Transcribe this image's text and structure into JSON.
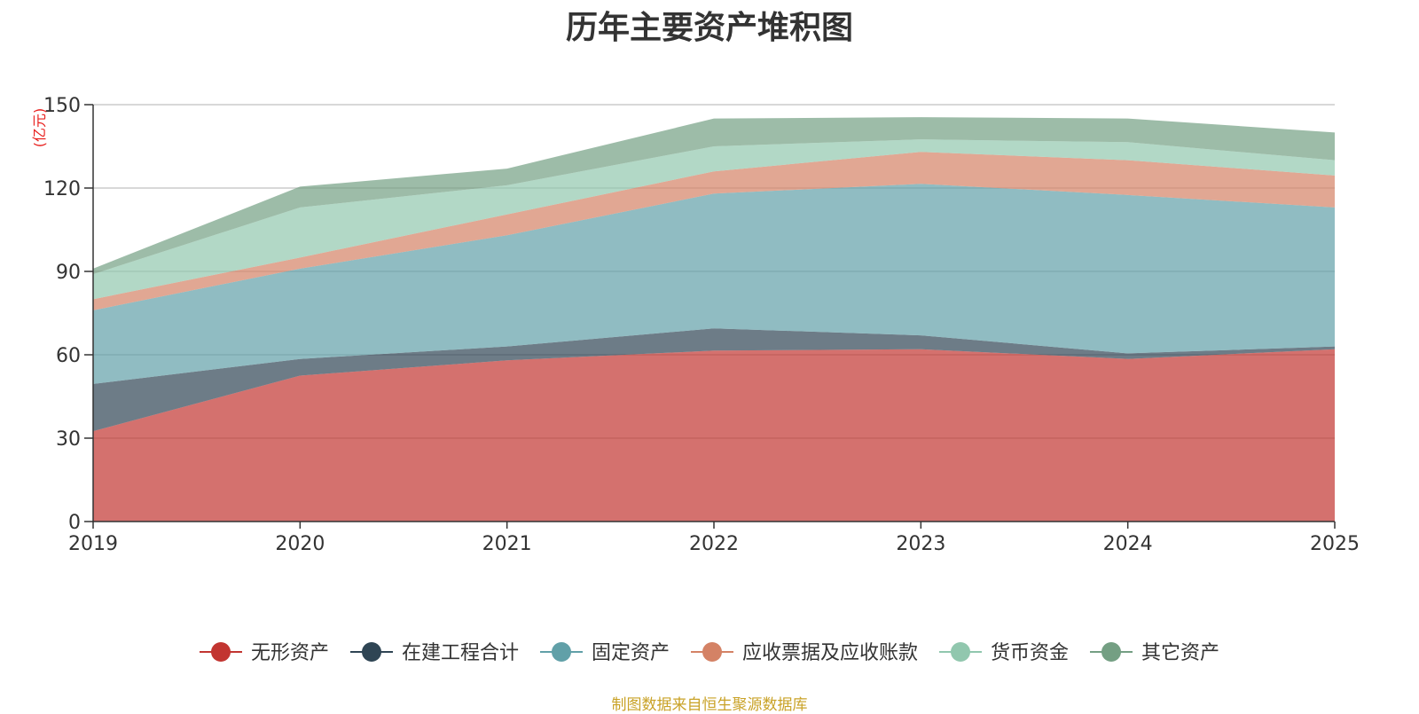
{
  "chart_data": {
    "type": "area",
    "stacked": true,
    "title": "历年主要资产堆积图",
    "ylabel": "(亿元)",
    "xlabel": "",
    "categories": [
      "2019",
      "2020",
      "2021",
      "2022",
      "2023",
      "2024",
      "2025"
    ],
    "ylim": [
      0,
      150
    ],
    "yticks": [
      0,
      30,
      60,
      90,
      120,
      150
    ],
    "grid": true,
    "legend_position": "bottom",
    "series": [
      {
        "name": "无形资产",
        "color": "#c23531",
        "values": [
          32.5,
          52.5,
          58.0,
          61.5,
          62.0,
          58.5,
          62.0
        ]
      },
      {
        "name": "在建工程合计",
        "color": "#2f4554",
        "values": [
          17.0,
          6.0,
          5.0,
          8.0,
          5.0,
          2.0,
          1.0
        ]
      },
      {
        "name": "固定资产",
        "color": "#61a0a8",
        "values": [
          26.5,
          32.5,
          40.0,
          48.5,
          54.5,
          57.0,
          50.0
        ]
      },
      {
        "name": "应收票据及应收账款",
        "color": "#d48265",
        "values": [
          4.0,
          4.0,
          7.5,
          8.0,
          11.5,
          12.5,
          11.5
        ]
      },
      {
        "name": "货币资金",
        "color": "#91c7ae",
        "values": [
          9.0,
          18.0,
          10.5,
          9.0,
          4.5,
          6.5,
          5.5
        ]
      },
      {
        "name": "其它资产",
        "color": "#749f83",
        "values": [
          2.0,
          7.5,
          6.0,
          10.0,
          8.0,
          8.5,
          10.0
        ]
      }
    ]
  },
  "source_note": "制图数据来自恒生聚源数据库"
}
